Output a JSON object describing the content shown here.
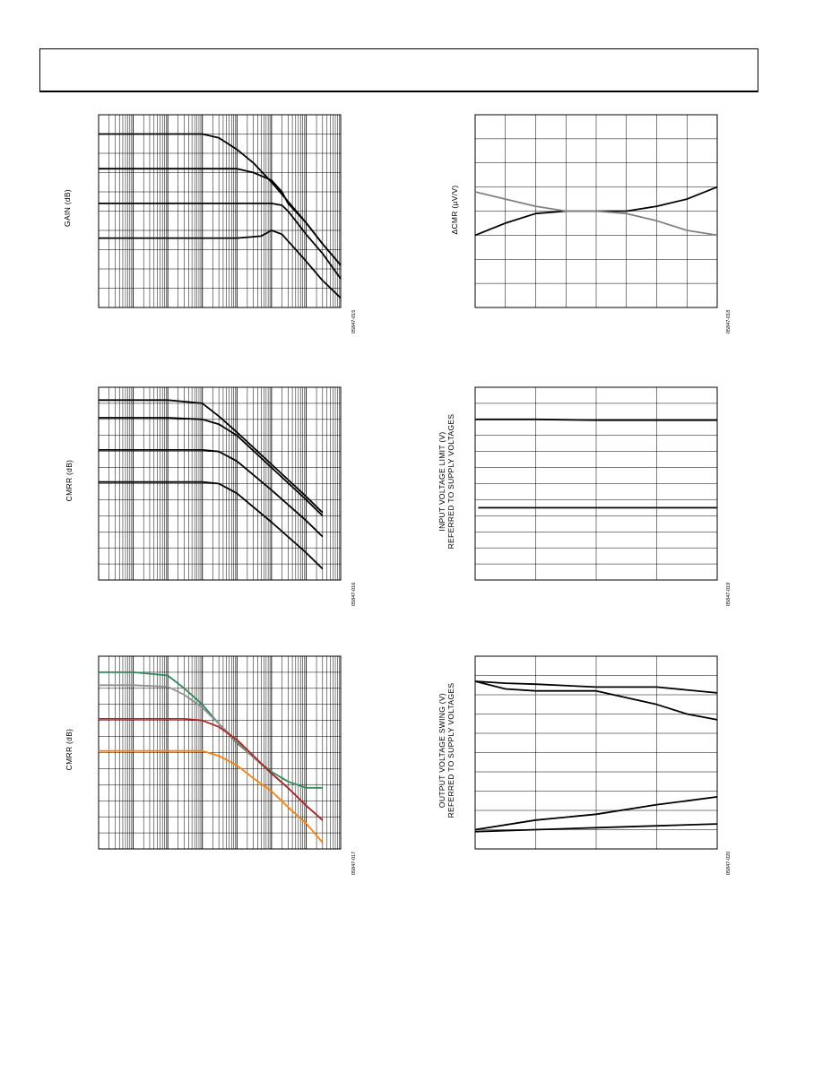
{
  "header": {
    "title": ""
  },
  "figures": [
    {
      "id": "fig15",
      "ylabel": "GAIN (dB)",
      "fig_id": "05847-015"
    },
    {
      "id": "fig16",
      "ylabel": "CMRR (dB)",
      "fig_id": "05847-016"
    },
    {
      "id": "fig17",
      "ylabel": "CMRR (dB)",
      "fig_id": "05847-017"
    },
    {
      "id": "fig18",
      "ylabel": "ΔCMR (µV/V)",
      "fig_id": "05847-018"
    },
    {
      "id": "fig19",
      "ylabel_line1": "INPUT VOLTAGE LIMIT (V)",
      "ylabel_line2": "REFERRED TO SUPPLY VOLTAGES",
      "fig_id": "05847-019"
    },
    {
      "id": "fig20",
      "ylabel_line1": "OUTPUT VOLTAGE SWING (V)",
      "ylabel_line2": "REFERRED TO SUPPLY VOLTAGES",
      "fig_id": "05847-020"
    }
  ],
  "chart_data": [
    {
      "id": "fig15",
      "type": "line",
      "xscale": "log",
      "xlim": [
        1,
        10000000
      ],
      "ylim": [
        0,
        100
      ],
      "grid": true,
      "title": "",
      "xlabel": "",
      "series_color": "#000000",
      "series": [
        {
          "x": [
            1,
            10,
            100,
            1000,
            3000,
            10000,
            30000,
            100000,
            300000,
            1000000,
            3000000,
            10000000
          ],
          "y": [
            90,
            90,
            90,
            90,
            88,
            82,
            75,
            65,
            55,
            44,
            33,
            22
          ]
        },
        {
          "x": [
            1,
            10,
            100,
            1000,
            10000,
            30000,
            100000,
            200000,
            300000,
            1000000,
            3000000,
            10000000
          ],
          "y": [
            72,
            72,
            72,
            72,
            72,
            70,
            66,
            60,
            54,
            44,
            33,
            22
          ]
        },
        {
          "x": [
            1,
            10,
            100,
            1000,
            10000,
            100000,
            200000,
            300000,
            500000,
            1000000,
            3000000,
            10000000
          ],
          "y": [
            54,
            54,
            54,
            54,
            54,
            54,
            53,
            50,
            45,
            38,
            28,
            15
          ]
        },
        {
          "x": [
            1,
            10,
            100,
            1000,
            10000,
            50000,
            100000,
            200000,
            400000,
            1000000,
            3000000,
            10000000
          ],
          "y": [
            36,
            36,
            36,
            36,
            36,
            37,
            40,
            38,
            32,
            24,
            14,
            5
          ]
        }
      ]
    },
    {
      "id": "fig16",
      "type": "line",
      "xscale": "log",
      "xlim": [
        1,
        10000000
      ],
      "ylim": [
        0,
        120
      ],
      "grid": true,
      "title": "",
      "xlabel": "",
      "series_color": "#000000",
      "series": [
        {
          "x": [
            1,
            10,
            100,
            1000,
            3000,
            10000,
            100000,
            1000000,
            3000000
          ],
          "y": [
            112,
            112,
            112,
            110,
            102,
            92,
            72,
            52,
            42
          ]
        },
        {
          "x": [
            1,
            10,
            100,
            1000,
            3000,
            10000,
            100000,
            1000000,
            3000000
          ],
          "y": [
            101,
            101,
            101,
            100,
            97,
            90,
            70,
            50,
            40
          ]
        },
        {
          "x": [
            1,
            10,
            100,
            1000,
            3000,
            10000,
            100000,
            1000000,
            3000000
          ],
          "y": [
            81,
            81,
            81,
            81,
            80,
            74,
            56,
            37,
            27
          ]
        },
        {
          "x": [
            1,
            10,
            100,
            1000,
            3000,
            10000,
            100000,
            1000000,
            3000000
          ],
          "y": [
            61,
            61,
            61,
            61,
            60,
            54,
            36,
            17,
            7
          ]
        }
      ]
    },
    {
      "id": "fig17",
      "type": "line",
      "xscale": "log",
      "xlim": [
        1,
        10000000
      ],
      "ylim": [
        0,
        120
      ],
      "grid": true,
      "title": "",
      "xlabel": "",
      "series": [
        {
          "color": "#2e8b57",
          "x": [
            1,
            10,
            100,
            300,
            1000,
            3000,
            10000,
            30000,
            100000,
            300000,
            1000000,
            3000000
          ],
          "y": [
            110,
            110,
            108,
            100,
            90,
            78,
            66,
            57,
            48,
            42,
            38,
            38
          ]
        },
        {
          "color": "#909090",
          "x": [
            1,
            10,
            100,
            300,
            1000,
            3000,
            10000,
            30000,
            100000,
            300000,
            1000000,
            3000000
          ],
          "y": [
            102,
            102,
            101,
            96,
            88,
            78,
            67,
            57,
            47,
            38,
            27,
            18
          ]
        },
        {
          "color": "#b22222",
          "x": [
            1,
            10,
            100,
            300,
            1000,
            3000,
            10000,
            30000,
            100000,
            300000,
            1000000,
            3000000
          ],
          "y": [
            81,
            81,
            81,
            81,
            80,
            76,
            68,
            58,
            47,
            38,
            27,
            18
          ]
        },
        {
          "color": "#ff7f00",
          "x": [
            1,
            10,
            100,
            1000,
            3000,
            10000,
            30000,
            100000,
            300000,
            1000000,
            3000000
          ],
          "y": [
            61,
            61,
            61,
            61,
            58,
            52,
            44,
            36,
            26,
            16,
            4
          ]
        }
      ]
    },
    {
      "id": "fig18",
      "type": "line",
      "ylim": [
        -40,
        40
      ],
      "xlim": [
        0,
        8
      ],
      "grid": true,
      "title": "",
      "xlabel": "",
      "series": [
        {
          "color": "#000000",
          "x": [
            0,
            1,
            2,
            3,
            4,
            5,
            6,
            7,
            8
          ],
          "y": [
            -10,
            -5,
            -1,
            0,
            0,
            0,
            2,
            5,
            10
          ]
        },
        {
          "color": "#808080",
          "x": [
            0,
            1,
            2,
            3,
            4,
            5,
            6,
            7,
            8
          ],
          "y": [
            8,
            5,
            2,
            0,
            0,
            -1,
            -4,
            -8,
            -10
          ]
        }
      ]
    },
    {
      "id": "fig19",
      "type": "line",
      "xlim": [
        0,
        4
      ],
      "ylim": [
        0,
        12
      ],
      "grid": true,
      "title": "",
      "xlabel": "",
      "series": [
        {
          "color": "#000000",
          "x": [
            0,
            1,
            2,
            3,
            4
          ],
          "y": [
            10,
            10,
            9.95,
            9.95,
            9.95
          ]
        },
        {
          "color": "#000000",
          "x": [
            0.05,
            1,
            2,
            3,
            4
          ],
          "y": [
            4.5,
            4.5,
            4.5,
            4.5,
            4.5
          ]
        }
      ]
    },
    {
      "id": "fig20",
      "type": "line",
      "xlim": [
        0,
        4
      ],
      "ylim": [
        0,
        10
      ],
      "grid": true,
      "title": "",
      "xlabel": "",
      "series": [
        {
          "color": "#000000",
          "x": [
            0,
            0.5,
            1,
            2,
            3,
            4
          ],
          "y": [
            8.7,
            8.6,
            8.55,
            8.4,
            8.4,
            8.1
          ]
        },
        {
          "color": "#000000",
          "x": [
            0,
            0.5,
            1,
            2,
            3,
            3.5,
            4
          ],
          "y": [
            8.7,
            8.3,
            8.2,
            8.2,
            7.5,
            7.0,
            6.7
          ]
        },
        {
          "color": "#000000",
          "x": [
            0,
            1,
            2,
            3,
            3.5,
            4
          ],
          "y": [
            1,
            1.5,
            1.8,
            2.3,
            2.5,
            2.7
          ]
        },
        {
          "color": "#000000",
          "x": [
            0,
            1,
            2,
            3,
            4
          ],
          "y": [
            0.9,
            1.0,
            1.1,
            1.2,
            1.3
          ]
        }
      ]
    }
  ]
}
